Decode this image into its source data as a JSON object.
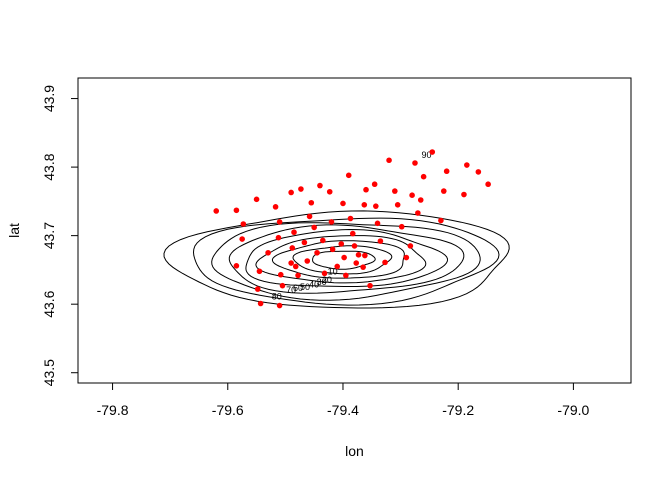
{
  "chart_data": {
    "type": "scatter",
    "title": "",
    "xlabel": "lon",
    "ylabel": "lat",
    "xlim": [
      -79.86,
      -78.9
    ],
    "ylim": [
      43.485,
      43.93
    ],
    "xticks": [
      {
        "value": -79.8,
        "label": "-79.8"
      },
      {
        "value": -79.6,
        "label": "-79.6"
      },
      {
        "value": -79.4,
        "label": "-79.4"
      },
      {
        "value": -79.2,
        "label": "-79.2"
      },
      {
        "value": -79.0,
        "label": "-79.0"
      }
    ],
    "yticks": [
      {
        "value": 43.5,
        "label": "43.5"
      },
      {
        "value": 43.6,
        "label": "43.6"
      },
      {
        "value": 43.7,
        "label": "43.7"
      },
      {
        "value": 43.8,
        "label": "43.8"
      },
      {
        "value": 43.9,
        "label": "43.9"
      }
    ],
    "grid": false,
    "point_color": "#ff0000",
    "points": [
      {
        "x": -79.62,
        "y": 43.736
      },
      {
        "x": -79.585,
        "y": 43.737
      },
      {
        "x": -79.573,
        "y": 43.717
      },
      {
        "x": -79.575,
        "y": 43.695
      },
      {
        "x": -79.585,
        "y": 43.656
      },
      {
        "x": -79.55,
        "y": 43.753
      },
      {
        "x": -79.545,
        "y": 43.648
      },
      {
        "x": -79.548,
        "y": 43.622
      },
      {
        "x": -79.543,
        "y": 43.601
      },
      {
        "x": -79.53,
        "y": 43.675
      },
      {
        "x": -79.517,
        "y": 43.742
      },
      {
        "x": -79.51,
        "y": 43.72
      },
      {
        "x": -79.512,
        "y": 43.697
      },
      {
        "x": -79.508,
        "y": 43.643
      },
      {
        "x": -79.505,
        "y": 43.627
      },
      {
        "x": -79.51,
        "y": 43.598
      },
      {
        "x": -79.49,
        "y": 43.763
      },
      {
        "x": -79.485,
        "y": 43.705
      },
      {
        "x": -79.488,
        "y": 43.682
      },
      {
        "x": -79.49,
        "y": 43.66
      },
      {
        "x": -79.482,
        "y": 43.655
      },
      {
        "x": -79.478,
        "y": 43.642
      },
      {
        "x": -79.473,
        "y": 43.768
      },
      {
        "x": -79.467,
        "y": 43.69
      },
      {
        "x": -79.462,
        "y": 43.663
      },
      {
        "x": -79.455,
        "y": 43.748
      },
      {
        "x": -79.458,
        "y": 43.728
      },
      {
        "x": -79.45,
        "y": 43.712
      },
      {
        "x": -79.445,
        "y": 43.675
      },
      {
        "x": -79.44,
        "y": 43.773
      },
      {
        "x": -79.435,
        "y": 43.693
      },
      {
        "x": -79.432,
        "y": 43.645
      },
      {
        "x": -79.42,
        "y": 43.72
      },
      {
        "x": -79.423,
        "y": 43.764
      },
      {
        "x": -79.418,
        "y": 43.68
      },
      {
        "x": -79.41,
        "y": 43.655
      },
      {
        "x": -79.403,
        "y": 43.688
      },
      {
        "x": -79.4,
        "y": 43.747
      },
      {
        "x": -79.398,
        "y": 43.668
      },
      {
        "x": -79.395,
        "y": 43.642
      },
      {
        "x": -79.39,
        "y": 43.788
      },
      {
        "x": -79.387,
        "y": 43.725
      },
      {
        "x": -79.383,
        "y": 43.703
      },
      {
        "x": -79.38,
        "y": 43.685
      },
      {
        "x": -79.377,
        "y": 43.66
      },
      {
        "x": -79.373,
        "y": 43.672
      },
      {
        "x": -79.36,
        "y": 43.767
      },
      {
        "x": -79.363,
        "y": 43.745
      },
      {
        "x": -79.362,
        "y": 43.671
      },
      {
        "x": -79.365,
        "y": 43.654
      },
      {
        "x": -79.353,
        "y": 43.627
      },
      {
        "x": -79.345,
        "y": 43.775
      },
      {
        "x": -79.343,
        "y": 43.743
      },
      {
        "x": -79.34,
        "y": 43.718
      },
      {
        "x": -79.335,
        "y": 43.692
      },
      {
        "x": -79.327,
        "y": 43.661
      },
      {
        "x": -79.32,
        "y": 43.81
      },
      {
        "x": -79.31,
        "y": 43.765
      },
      {
        "x": -79.305,
        "y": 43.745
      },
      {
        "x": -79.298,
        "y": 43.713
      },
      {
        "x": -79.29,
        "y": 43.668
      },
      {
        "x": -79.283,
        "y": 43.685
      },
      {
        "x": -79.28,
        "y": 43.759
      },
      {
        "x": -79.275,
        "y": 43.806
      },
      {
        "x": -79.27,
        "y": 43.733
      },
      {
        "x": -79.265,
        "y": 43.752
      },
      {
        "x": -79.26,
        "y": 43.786
      },
      {
        "x": -79.245,
        "y": 43.822
      },
      {
        "x": -79.23,
        "y": 43.722
      },
      {
        "x": -79.225,
        "y": 43.765
      },
      {
        "x": -79.22,
        "y": 43.794
      },
      {
        "x": -79.19,
        "y": 43.76
      },
      {
        "x": -79.185,
        "y": 43.803
      },
      {
        "x": -79.165,
        "y": 43.793
      },
      {
        "x": -79.148,
        "y": 43.775
      }
    ],
    "contours": {
      "center": {
        "x": -79.4,
        "y": 43.665
      },
      "labels": [
        "90",
        "80",
        "70",
        "60",
        "50",
        "40",
        "30",
        "20",
        "10"
      ],
      "levels": [
        {
          "a": 0.295,
          "b": 0.07,
          "angle": 20
        },
        {
          "a": 0.265,
          "b": 0.062,
          "angle": 21
        },
        {
          "a": 0.235,
          "b": 0.055,
          "angle": 22
        },
        {
          "a": 0.205,
          "b": 0.048,
          "angle": 23
        },
        {
          "a": 0.175,
          "b": 0.041,
          "angle": 24
        },
        {
          "a": 0.145,
          "b": 0.034,
          "angle": 25
        },
        {
          "a": 0.115,
          "b": 0.027,
          "angle": 26
        },
        {
          "a": 0.085,
          "b": 0.02,
          "angle": 27
        },
        {
          "a": 0.055,
          "b": 0.013,
          "angle": 28
        }
      ],
      "label_positions": [
        {
          "x": -79.255,
          "y": 43.813
        },
        {
          "x": -79.515,
          "y": 43.607
        },
        {
          "x": -79.49,
          "y": 43.616
        },
        {
          "x": -79.478,
          "y": 43.619
        },
        {
          "x": -79.466,
          "y": 43.621
        },
        {
          "x": -79.45,
          "y": 43.624
        },
        {
          "x": -79.437,
          "y": 43.628
        },
        {
          "x": -79.428,
          "y": 43.631
        },
        {
          "x": -79.418,
          "y": 43.643
        }
      ]
    }
  }
}
